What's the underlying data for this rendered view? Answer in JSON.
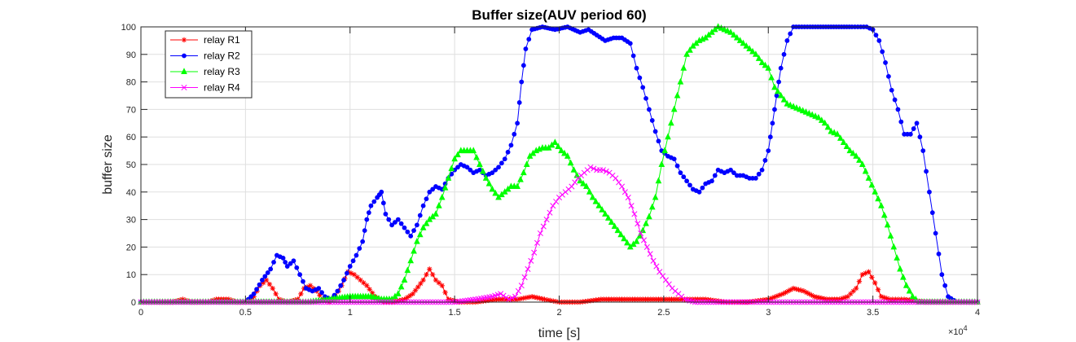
{
  "chart_data": {
    "type": "line",
    "title": "Buffer size(AUV period 60)",
    "xlabel": "time [s]",
    "ylabel": "buffer size",
    "x_exponent_label": "×10",
    "x_exponent_power": "4",
    "xlim": [
      0,
      40000
    ],
    "ylim": [
      0,
      100
    ],
    "x_ticks": [
      0,
      5000,
      10000,
      15000,
      20000,
      25000,
      30000,
      35000,
      40000
    ],
    "x_tick_labels": [
      "0",
      "0.5",
      "1",
      "1.5",
      "2",
      "2.5",
      "3",
      "3.5",
      "4"
    ],
    "y_ticks": [
      0,
      10,
      20,
      30,
      40,
      50,
      60,
      70,
      80,
      90,
      100
    ],
    "y_tick_labels": [
      "0",
      "10",
      "20",
      "30",
      "40",
      "50",
      "60",
      "70",
      "80",
      "90",
      "100"
    ],
    "grid": true,
    "legend_position": "top-left",
    "series": [
      {
        "name": "relay R1",
        "color": "#ff0000",
        "marker": "star",
        "points": [
          [
            0,
            0
          ],
          [
            1500,
            0
          ],
          [
            2000,
            1
          ],
          [
            2400,
            0
          ],
          [
            3200,
            0
          ],
          [
            3600,
            1
          ],
          [
            4200,
            1
          ],
          [
            4600,
            0
          ],
          [
            5000,
            0
          ],
          [
            5400,
            2
          ],
          [
            5700,
            6
          ],
          [
            6000,
            8
          ],
          [
            6300,
            5
          ],
          [
            6600,
            1
          ],
          [
            7000,
            0
          ],
          [
            7500,
            1
          ],
          [
            7800,
            5
          ],
          [
            8100,
            6
          ],
          [
            8400,
            4
          ],
          [
            8700,
            1
          ],
          [
            9000,
            0
          ],
          [
            9300,
            2
          ],
          [
            9600,
            6
          ],
          [
            9900,
            11
          ],
          [
            10200,
            10
          ],
          [
            10500,
            8
          ],
          [
            10800,
            6
          ],
          [
            11200,
            2
          ],
          [
            11600,
            0
          ],
          [
            12000,
            0
          ],
          [
            12600,
            1
          ],
          [
            13000,
            3
          ],
          [
            13500,
            8
          ],
          [
            13800,
            12
          ],
          [
            14100,
            8
          ],
          [
            14400,
            6
          ],
          [
            14700,
            1
          ],
          [
            15200,
            0
          ],
          [
            16000,
            0
          ],
          [
            17000,
            1
          ],
          [
            18000,
            1
          ],
          [
            18700,
            2
          ],
          [
            19300,
            1
          ],
          [
            20000,
            0
          ],
          [
            21000,
            0
          ],
          [
            22000,
            1
          ],
          [
            23000,
            1
          ],
          [
            24000,
            1
          ],
          [
            25000,
            1
          ],
          [
            26000,
            1
          ],
          [
            27000,
            1
          ],
          [
            28000,
            0
          ],
          [
            29000,
            0
          ],
          [
            30000,
            1
          ],
          [
            30700,
            3
          ],
          [
            31200,
            5
          ],
          [
            31700,
            4
          ],
          [
            32200,
            2
          ],
          [
            32800,
            1
          ],
          [
            33400,
            1
          ],
          [
            33800,
            2
          ],
          [
            34200,
            5
          ],
          [
            34500,
            10
          ],
          [
            34800,
            11
          ],
          [
            35100,
            7
          ],
          [
            35400,
            2
          ],
          [
            35800,
            1
          ],
          [
            36500,
            1
          ],
          [
            37500,
            0
          ],
          [
            40000,
            0
          ]
        ]
      },
      {
        "name": "relay R2",
        "color": "#0000ff",
        "marker": "dot",
        "points": [
          [
            0,
            0
          ],
          [
            4000,
            0
          ],
          [
            5000,
            0
          ],
          [
            5400,
            3
          ],
          [
            5800,
            8
          ],
          [
            6200,
            12
          ],
          [
            6500,
            17
          ],
          [
            6800,
            16
          ],
          [
            7000,
            13
          ],
          [
            7300,
            15
          ],
          [
            7600,
            10
          ],
          [
            7900,
            5
          ],
          [
            8200,
            4
          ],
          [
            8500,
            5
          ],
          [
            8800,
            2
          ],
          [
            9100,
            1
          ],
          [
            9400,
            4
          ],
          [
            9700,
            8
          ],
          [
            10000,
            13
          ],
          [
            10300,
            17
          ],
          [
            10600,
            22
          ],
          [
            10800,
            30
          ],
          [
            11000,
            35
          ],
          [
            11300,
            38
          ],
          [
            11500,
            40
          ],
          [
            11700,
            32
          ],
          [
            12000,
            28
          ],
          [
            12300,
            30
          ],
          [
            12600,
            27
          ],
          [
            12900,
            24
          ],
          [
            13200,
            28
          ],
          [
            13500,
            35
          ],
          [
            13800,
            40
          ],
          [
            14100,
            42
          ],
          [
            14400,
            41
          ],
          [
            14700,
            45
          ],
          [
            15000,
            48
          ],
          [
            15300,
            50
          ],
          [
            15600,
            49
          ],
          [
            15900,
            47
          ],
          [
            16200,
            48
          ],
          [
            16500,
            46
          ],
          [
            16800,
            47
          ],
          [
            17100,
            49
          ],
          [
            17400,
            52
          ],
          [
            17700,
            57
          ],
          [
            18000,
            65
          ],
          [
            18200,
            80
          ],
          [
            18400,
            92
          ],
          [
            18700,
            99
          ],
          [
            19200,
            100
          ],
          [
            19800,
            99
          ],
          [
            20400,
            100
          ],
          [
            21000,
            98
          ],
          [
            21400,
            99
          ],
          [
            21800,
            97
          ],
          [
            22200,
            95
          ],
          [
            22600,
            96
          ],
          [
            23000,
            96
          ],
          [
            23400,
            94
          ],
          [
            23700,
            85
          ],
          [
            24000,
            78
          ],
          [
            24300,
            70
          ],
          [
            24600,
            62
          ],
          [
            24900,
            55
          ],
          [
            25200,
            53
          ],
          [
            25500,
            52
          ],
          [
            25800,
            47
          ],
          [
            26100,
            44
          ],
          [
            26400,
            41
          ],
          [
            26700,
            40
          ],
          [
            27000,
            43
          ],
          [
            27300,
            44
          ],
          [
            27600,
            48
          ],
          [
            27900,
            47
          ],
          [
            28200,
            48
          ],
          [
            28500,
            46
          ],
          [
            28800,
            46
          ],
          [
            29100,
            45
          ],
          [
            29400,
            45
          ],
          [
            29700,
            48
          ],
          [
            30000,
            55
          ],
          [
            30200,
            65
          ],
          [
            30400,
            75
          ],
          [
            30600,
            85
          ],
          [
            30900,
            95
          ],
          [
            31200,
            100
          ],
          [
            32000,
            100
          ],
          [
            33000,
            100
          ],
          [
            34000,
            100
          ],
          [
            34700,
            100
          ],
          [
            35000,
            99
          ],
          [
            35300,
            95
          ],
          [
            35600,
            87
          ],
          [
            35900,
            77
          ],
          [
            36200,
            70
          ],
          [
            36500,
            61
          ],
          [
            36800,
            61
          ],
          [
            37100,
            65
          ],
          [
            37400,
            55
          ],
          [
            37700,
            40
          ],
          [
            38000,
            25
          ],
          [
            38300,
            10
          ],
          [
            38600,
            2
          ],
          [
            39000,
            0
          ],
          [
            40000,
            0
          ]
        ]
      },
      {
        "name": "relay R3",
        "color": "#00ff00",
        "marker": "triangle",
        "points": [
          [
            0,
            0
          ],
          [
            4000,
            0
          ],
          [
            5000,
            0
          ],
          [
            6000,
            0
          ],
          [
            7000,
            0
          ],
          [
            8000,
            0
          ],
          [
            9000,
            1
          ],
          [
            10000,
            2
          ],
          [
            10500,
            2
          ],
          [
            11000,
            2
          ],
          [
            11500,
            1
          ],
          [
            12000,
            1
          ],
          [
            12300,
            3
          ],
          [
            12600,
            8
          ],
          [
            12900,
            15
          ],
          [
            13200,
            22
          ],
          [
            13500,
            27
          ],
          [
            13800,
            30
          ],
          [
            14100,
            32
          ],
          [
            14400,
            38
          ],
          [
            14700,
            45
          ],
          [
            15000,
            52
          ],
          [
            15300,
            55
          ],
          [
            15600,
            55
          ],
          [
            15900,
            55
          ],
          [
            16200,
            50
          ],
          [
            16500,
            45
          ],
          [
            16800,
            41
          ],
          [
            17100,
            38
          ],
          [
            17400,
            40
          ],
          [
            17700,
            42
          ],
          [
            18000,
            42
          ],
          [
            18300,
            47
          ],
          [
            18600,
            53
          ],
          [
            18900,
            55
          ],
          [
            19200,
            56
          ],
          [
            19500,
            56
          ],
          [
            19800,
            58
          ],
          [
            20100,
            55
          ],
          [
            20400,
            53
          ],
          [
            20700,
            48
          ],
          [
            21000,
            44
          ],
          [
            21300,
            42
          ],
          [
            21600,
            38
          ],
          [
            21900,
            35
          ],
          [
            22200,
            32
          ],
          [
            22500,
            29
          ],
          [
            22800,
            26
          ],
          [
            23100,
            23
          ],
          [
            23400,
            20
          ],
          [
            23700,
            22
          ],
          [
            24000,
            26
          ],
          [
            24300,
            31
          ],
          [
            24600,
            38
          ],
          [
            24900,
            50
          ],
          [
            25200,
            60
          ],
          [
            25500,
            70
          ],
          [
            25800,
            80
          ],
          [
            26100,
            90
          ],
          [
            26400,
            93
          ],
          [
            26700,
            95
          ],
          [
            27000,
            96
          ],
          [
            27300,
            98
          ],
          [
            27600,
            100
          ],
          [
            27900,
            99
          ],
          [
            28200,
            98
          ],
          [
            28500,
            96
          ],
          [
            28800,
            94
          ],
          [
            29100,
            92
          ],
          [
            29400,
            90
          ],
          [
            29700,
            87
          ],
          [
            30000,
            85
          ],
          [
            30300,
            78
          ],
          [
            30600,
            75
          ],
          [
            30900,
            72
          ],
          [
            31200,
            71
          ],
          [
            31500,
            70
          ],
          [
            31800,
            69
          ],
          [
            32100,
            68
          ],
          [
            32400,
            67
          ],
          [
            32700,
            65
          ],
          [
            33000,
            62
          ],
          [
            33300,
            61
          ],
          [
            33600,
            58
          ],
          [
            33900,
            55
          ],
          [
            34200,
            53
          ],
          [
            34500,
            50
          ],
          [
            34800,
            45
          ],
          [
            35100,
            40
          ],
          [
            35400,
            35
          ],
          [
            35700,
            28
          ],
          [
            36000,
            20
          ],
          [
            36300,
            12
          ],
          [
            36600,
            6
          ],
          [
            36900,
            2
          ],
          [
            37200,
            0
          ],
          [
            40000,
            0
          ]
        ]
      },
      {
        "name": "relay R4",
        "color": "#ff00ff",
        "marker": "x",
        "points": [
          [
            0,
            0
          ],
          [
            4000,
            0
          ],
          [
            8000,
            0
          ],
          [
            12000,
            0
          ],
          [
            15000,
            0
          ],
          [
            16000,
            1
          ],
          [
            16800,
            2
          ],
          [
            17200,
            3
          ],
          [
            17600,
            1
          ],
          [
            17900,
            2
          ],
          [
            18200,
            6
          ],
          [
            18500,
            12
          ],
          [
            18800,
            18
          ],
          [
            19100,
            25
          ],
          [
            19400,
            30
          ],
          [
            19700,
            35
          ],
          [
            20000,
            38
          ],
          [
            20300,
            40
          ],
          [
            20600,
            42
          ],
          [
            20900,
            45
          ],
          [
            21200,
            47
          ],
          [
            21500,
            49
          ],
          [
            21800,
            48
          ],
          [
            22100,
            48
          ],
          [
            22400,
            47
          ],
          [
            22700,
            45
          ],
          [
            23000,
            42
          ],
          [
            23300,
            38
          ],
          [
            23600,
            32
          ],
          [
            23900,
            25
          ],
          [
            24200,
            20
          ],
          [
            24500,
            15
          ],
          [
            24800,
            11
          ],
          [
            25100,
            8
          ],
          [
            25400,
            5
          ],
          [
            25700,
            3
          ],
          [
            26000,
            1
          ],
          [
            26500,
            0
          ],
          [
            28000,
            0
          ],
          [
            30000,
            0
          ],
          [
            32000,
            0
          ],
          [
            34000,
            0
          ],
          [
            36000,
            0
          ],
          [
            40000,
            0
          ]
        ]
      }
    ]
  }
}
